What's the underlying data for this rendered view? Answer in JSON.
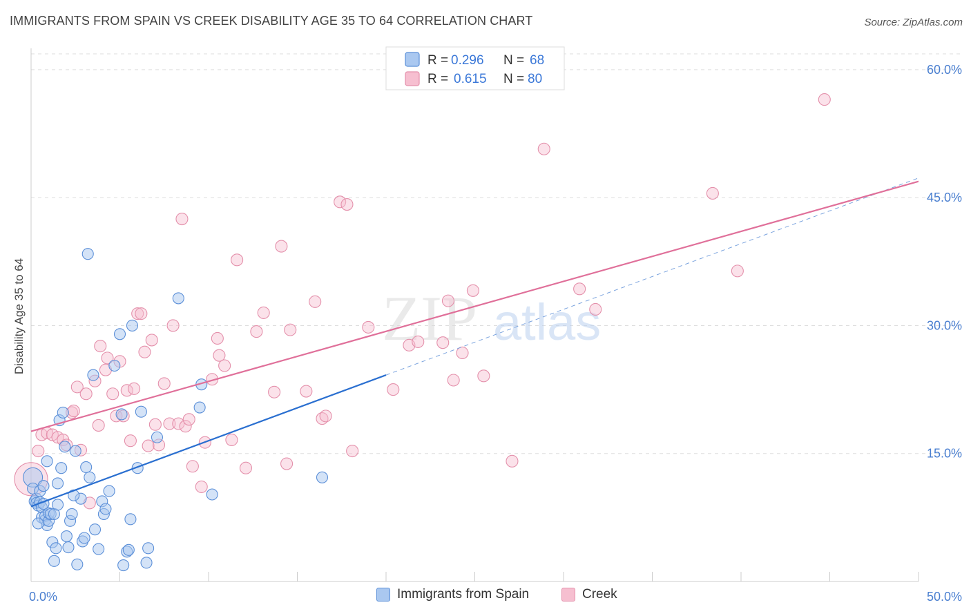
{
  "title": "IMMIGRANTS FROM SPAIN VS CREEK DISABILITY AGE 35 TO 64 CORRELATION CHART",
  "source": "Source: ZipAtlas.com",
  "watermark": {
    "zip": "ZIP",
    "atlas": "atlas"
  },
  "colors": {
    "blue_fill": "#aac8f0",
    "blue_stroke": "#5b8fd8",
    "blue_line": "#2a6fd0",
    "pink_fill": "#f6bfd0",
    "pink_stroke": "#e490ab",
    "pink_line": "#e0709a",
    "tick_text": "#4a7fd0",
    "grid": "#dddddd"
  },
  "legend": {
    "rows": [
      {
        "r_label": "R = ",
        "r_value": "0.296",
        "n_label": "N = ",
        "n_value": "68"
      },
      {
        "r_label": "R = ",
        "r_value": "0.615",
        "n_label": "N = ",
        "n_value": "80"
      }
    ]
  },
  "chart_data": {
    "type": "scatter",
    "title": "IMMIGRANTS FROM SPAIN VS CREEK DISABILITY AGE 35 TO 64 CORRELATION CHART",
    "xlabel": "",
    "ylabel": "Disability Age 35 to 64",
    "xlim": [
      0,
      50
    ],
    "ylim": [
      0,
      62.5
    ],
    "x_tick_labels": [
      "0.0%",
      "50.0%"
    ],
    "y_ticks": [
      15,
      30,
      45,
      60
    ],
    "y_tick_labels": [
      "15.0%",
      "30.0%",
      "45.0%",
      "60.0%"
    ],
    "grid": true,
    "legend_position": "top-center",
    "series": [
      {
        "name": "Immigrants from Spain",
        "color": "#5b8fd8",
        "r": 0.296,
        "n": 68,
        "trend": {
          "x": [
            0,
            20
          ],
          "y": [
            8.8,
            24.2
          ]
        },
        "trend_extension": {
          "x": [
            20,
            50
          ],
          "y": [
            24.2,
            47.3
          ]
        },
        "points": [
          [
            0.1,
            12.2
          ],
          [
            0.1,
            10.9
          ],
          [
            0.2,
            9.4
          ],
          [
            0.3,
            9.7
          ],
          [
            0.3,
            9.2
          ],
          [
            0.4,
            8.9
          ],
          [
            0.5,
            9.3
          ],
          [
            0.5,
            10.6
          ],
          [
            0.6,
            7.5
          ],
          [
            0.6,
            8.7
          ],
          [
            0.7,
            11.2
          ],
          [
            0.7,
            9.1
          ],
          [
            0.8,
            7.2
          ],
          [
            0.8,
            7.7
          ],
          [
            0.9,
            6.6
          ],
          [
            1.0,
            7.1
          ],
          [
            1.0,
            8.0
          ],
          [
            1.1,
            7.9
          ],
          [
            1.2,
            4.6
          ],
          [
            1.3,
            7.9
          ],
          [
            1.3,
            2.4
          ],
          [
            1.4,
            3.9
          ],
          [
            1.5,
            11.5
          ],
          [
            1.6,
            18.9
          ],
          [
            1.7,
            13.3
          ],
          [
            1.8,
            19.8
          ],
          [
            1.9,
            15.8
          ],
          [
            2.0,
            5.3
          ],
          [
            2.1,
            4.0
          ],
          [
            2.2,
            7.1
          ],
          [
            2.3,
            7.9
          ],
          [
            2.5,
            15.3
          ],
          [
            2.6,
            2.0
          ],
          [
            2.8,
            9.7
          ],
          [
            2.9,
            4.7
          ],
          [
            3.0,
            5.1
          ],
          [
            3.1,
            13.4
          ],
          [
            3.2,
            38.4
          ],
          [
            3.3,
            12.2
          ],
          [
            3.5,
            24.2
          ],
          [
            3.8,
            3.8
          ],
          [
            4.0,
            9.4
          ],
          [
            4.1,
            7.9
          ],
          [
            4.2,
            8.5
          ],
          [
            4.7,
            25.3
          ],
          [
            5.0,
            29.0
          ],
          [
            5.1,
            19.6
          ],
          [
            5.2,
            1.9
          ],
          [
            5.4,
            3.5
          ],
          [
            5.5,
            3.7
          ],
          [
            5.6,
            7.3
          ],
          [
            5.7,
            30.0
          ],
          [
            6.0,
            13.3
          ],
          [
            6.2,
            19.9
          ],
          [
            6.5,
            2.2
          ],
          [
            6.6,
            3.9
          ],
          [
            7.1,
            16.9
          ],
          [
            8.3,
            33.2
          ],
          [
            9.5,
            20.4
          ],
          [
            9.6,
            23.1
          ],
          [
            10.2,
            10.2
          ],
          [
            16.4,
            12.2
          ],
          [
            0.4,
            6.8
          ],
          [
            1.5,
            9.0
          ],
          [
            2.4,
            10.1
          ],
          [
            3.6,
            6.1
          ],
          [
            0.9,
            14.1
          ],
          [
            4.4,
            10.6
          ]
        ]
      },
      {
        "name": "Creek",
        "color": "#e490ab",
        "r": 0.615,
        "n": 80,
        "trend": {
          "x": [
            0,
            50
          ],
          "y": [
            17.6,
            46.9
          ]
        },
        "points": [
          [
            0.0,
            12.0
          ],
          [
            0.4,
            15.3
          ],
          [
            0.6,
            17.2
          ],
          [
            0.9,
            17.4
          ],
          [
            1.2,
            17.2
          ],
          [
            1.5,
            16.9
          ],
          [
            1.8,
            16.6
          ],
          [
            2.0,
            16.0
          ],
          [
            2.3,
            19.8
          ],
          [
            2.4,
            20.0
          ],
          [
            2.6,
            22.8
          ],
          [
            2.8,
            15.4
          ],
          [
            3.1,
            22.0
          ],
          [
            3.3,
            9.2
          ],
          [
            3.6,
            23.5
          ],
          [
            3.8,
            18.3
          ],
          [
            3.9,
            27.6
          ],
          [
            4.2,
            24.8
          ],
          [
            4.3,
            26.2
          ],
          [
            4.6,
            22.0
          ],
          [
            4.8,
            19.4
          ],
          [
            5.0,
            25.8
          ],
          [
            5.2,
            19.4
          ],
          [
            5.4,
            22.4
          ],
          [
            5.6,
            16.5
          ],
          [
            5.8,
            22.6
          ],
          [
            6.0,
            31.4
          ],
          [
            6.2,
            31.4
          ],
          [
            6.4,
            26.9
          ],
          [
            6.6,
            15.9
          ],
          [
            6.8,
            28.3
          ],
          [
            7.0,
            18.4
          ],
          [
            7.2,
            16.0
          ],
          [
            7.5,
            23.2
          ],
          [
            7.8,
            18.5
          ],
          [
            8.0,
            30.0
          ],
          [
            8.3,
            18.5
          ],
          [
            8.5,
            42.5
          ],
          [
            8.7,
            18.2
          ],
          [
            8.9,
            19.0
          ],
          [
            9.1,
            13.5
          ],
          [
            9.6,
            11.1
          ],
          [
            9.8,
            16.3
          ],
          [
            10.2,
            23.7
          ],
          [
            10.5,
            28.5
          ],
          [
            10.6,
            26.5
          ],
          [
            10.9,
            25.3
          ],
          [
            11.3,
            16.6
          ],
          [
            11.6,
            37.7
          ],
          [
            12.1,
            13.3
          ],
          [
            12.7,
            29.3
          ],
          [
            13.1,
            31.5
          ],
          [
            13.7,
            22.2
          ],
          [
            14.1,
            39.3
          ],
          [
            14.4,
            13.8
          ],
          [
            14.6,
            29.5
          ],
          [
            15.5,
            22.3
          ],
          [
            16.0,
            32.8
          ],
          [
            16.4,
            19.1
          ],
          [
            16.6,
            19.4
          ],
          [
            17.4,
            44.5
          ],
          [
            17.8,
            44.2
          ],
          [
            18.1,
            15.3
          ],
          [
            19.0,
            29.8
          ],
          [
            20.4,
            22.5
          ],
          [
            21.3,
            27.7
          ],
          [
            21.8,
            28.1
          ],
          [
            23.2,
            28.0
          ],
          [
            23.5,
            32.9
          ],
          [
            23.8,
            23.6
          ],
          [
            24.3,
            26.8
          ],
          [
            24.9,
            34.1
          ],
          [
            25.5,
            24.1
          ],
          [
            27.1,
            14.1
          ],
          [
            28.9,
            50.7
          ],
          [
            30.9,
            34.3
          ],
          [
            31.8,
            31.9
          ],
          [
            38.4,
            45.5
          ],
          [
            39.8,
            36.4
          ],
          [
            44.7,
            56.5
          ]
        ]
      }
    ]
  },
  "bottom_legend": [
    {
      "label": "Immigrants from Spain"
    },
    {
      "label": "Creek"
    }
  ]
}
